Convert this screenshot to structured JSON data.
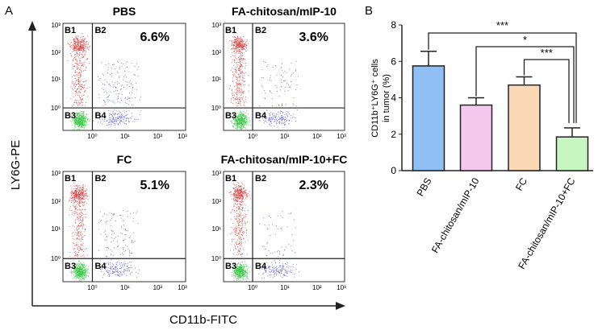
{
  "chart_data": [
    {
      "type": "scatter",
      "panel_label": "A",
      "xlabel": "CD11b-FITC",
      "ylabel": "LY6G-PE",
      "x_ticks": [
        "10⁰",
        "10¹",
        "10²",
        "10³"
      ],
      "y_ticks": [
        "10⁰",
        "10¹",
        "10²",
        "10³"
      ],
      "quadrants": [
        "B1",
        "B2",
        "B3",
        "B4"
      ],
      "panels": [
        {
          "title": "PBS",
          "percent": "6.6%",
          "b2_fraction": 0.066
        },
        {
          "title": "FA-chitosan/mIP-10",
          "percent": "3.6%",
          "b2_fraction": 0.036
        },
        {
          "title": "FC",
          "percent": "5.1%",
          "b2_fraction": 0.051
        },
        {
          "title": "FA-chitosan/mIP-10+FC",
          "percent": "2.3%",
          "b2_fraction": 0.023
        }
      ],
      "colors": {
        "B1": "#d42a2a",
        "B2": "#4a4aa8",
        "B3": "#22c030",
        "B4": "#4a4ad0"
      }
    },
    {
      "type": "bar",
      "panel_label": "B",
      "categories": [
        "PBS",
        "FA-chitosan/mIP-10",
        "FC",
        "FA-chitosan/mIP-10+FC"
      ],
      "values": [
        5.75,
        3.6,
        4.7,
        1.85
      ],
      "errors": [
        0.8,
        0.4,
        0.45,
        0.5
      ],
      "colors": [
        "#8fbff5",
        "#f5c8ee",
        "#fbd9b6",
        "#c7f7c0"
      ],
      "ylabel_line1": "CD11b⁺LY6G⁺ cells",
      "ylabel_line2": "in tumor (%)",
      "ylim": [
        0,
        8
      ],
      "y_ticks": [
        "0",
        "2",
        "4",
        "6",
        "8"
      ],
      "significance": [
        {
          "from": 0,
          "to": 3,
          "label": "***"
        },
        {
          "from": 1,
          "to": 3,
          "label": "*"
        },
        {
          "from": 2,
          "to": 3,
          "label": "***"
        }
      ]
    }
  ]
}
